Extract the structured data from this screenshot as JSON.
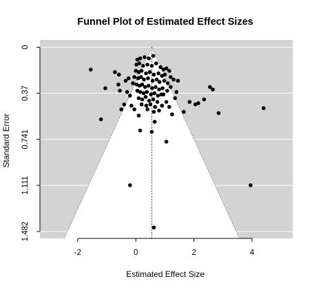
{
  "chart_data": {
    "type": "scatter",
    "title": "Funnel Plot of Estimated Effect Sizes",
    "xlabel": "Estimated Effect Size",
    "ylabel": "Standard Error",
    "xlim": [
      -3.3,
      5.4
    ],
    "ylim": [
      1.482,
      0
    ],
    "y_reversed": true,
    "x_ticks": [
      -2,
      0,
      2,
      4
    ],
    "x_tick_labels": [
      "-2",
      "0",
      "2",
      "4"
    ],
    "y_ticks": [
      0,
      0.37,
      0.741,
      1.111,
      1.482
    ],
    "y_tick_labels": [
      "0",
      "0.37",
      "0.741",
      "1.111",
      "1.482"
    ],
    "grid": true,
    "pooled_estimate": 0.55,
    "funnel_z": 1.96,
    "colors": {
      "panel_background": "#d3d3d3",
      "funnel_fill": "#ffffff",
      "gridline": "#ffffff",
      "point": "#000000",
      "funnel_edge": "#555555"
    },
    "points": [
      {
        "x": -1.55,
        "y": 0.18
      },
      {
        "x": -0.72,
        "y": 0.2
      },
      {
        "x": -0.58,
        "y": 0.22
      },
      {
        "x": -1.05,
        "y": 0.33
      },
      {
        "x": -0.6,
        "y": 0.3
      },
      {
        "x": -0.35,
        "y": 0.27
      },
      {
        "x": -0.25,
        "y": 0.25
      },
      {
        "x": -0.1,
        "y": 0.29
      },
      {
        "x": -0.55,
        "y": 0.35
      },
      {
        "x": -0.3,
        "y": 0.36
      },
      {
        "x": -0.2,
        "y": 0.39
      },
      {
        "x": -0.4,
        "y": 0.46
      },
      {
        "x": -0.5,
        "y": 0.5
      },
      {
        "x": -1.2,
        "y": 0.58
      },
      {
        "x": -0.05,
        "y": 0.5
      },
      {
        "x": -0.15,
        "y": 0.47
      },
      {
        "x": 0.05,
        "y": 0.1
      },
      {
        "x": 0.15,
        "y": 0.09
      },
      {
        "x": 0.3,
        "y": 0.08
      },
      {
        "x": 0.45,
        "y": 0.09
      },
      {
        "x": 0.6,
        "y": 0.07
      },
      {
        "x": 0.02,
        "y": 0.14
      },
      {
        "x": 0.12,
        "y": 0.13
      },
      {
        "x": 0.25,
        "y": 0.15
      },
      {
        "x": 0.4,
        "y": 0.14
      },
      {
        "x": 0.55,
        "y": 0.15
      },
      {
        "x": 0.7,
        "y": 0.13
      },
      {
        "x": 0.85,
        "y": 0.16
      },
      {
        "x": 0.95,
        "y": 0.18
      },
      {
        "x": 1.05,
        "y": 0.17
      },
      {
        "x": 1.15,
        "y": 0.19
      },
      {
        "x": 0.0,
        "y": 0.19
      },
      {
        "x": 0.1,
        "y": 0.2
      },
      {
        "x": 0.2,
        "y": 0.19
      },
      {
        "x": 0.35,
        "y": 0.21
      },
      {
        "x": 0.48,
        "y": 0.2
      },
      {
        "x": 0.62,
        "y": 0.22
      },
      {
        "x": 0.78,
        "y": 0.21
      },
      {
        "x": 0.9,
        "y": 0.23
      },
      {
        "x": 1.0,
        "y": 0.22
      },
      {
        "x": 1.2,
        "y": 0.24
      },
      {
        "x": 1.3,
        "y": 0.26
      },
      {
        "x": 1.45,
        "y": 0.27
      },
      {
        "x": -0.05,
        "y": 0.24
      },
      {
        "x": 0.08,
        "y": 0.25
      },
      {
        "x": 0.18,
        "y": 0.24
      },
      {
        "x": 0.28,
        "y": 0.26
      },
      {
        "x": 0.42,
        "y": 0.25
      },
      {
        "x": 0.58,
        "y": 0.27
      },
      {
        "x": 0.72,
        "y": 0.26
      },
      {
        "x": 0.82,
        "y": 0.28
      },
      {
        "x": 0.98,
        "y": 0.27
      },
      {
        "x": 1.1,
        "y": 0.29
      },
      {
        "x": 0.03,
        "y": 0.3
      },
      {
        "x": 0.13,
        "y": 0.31
      },
      {
        "x": 0.22,
        "y": 0.3
      },
      {
        "x": 0.32,
        "y": 0.32
      },
      {
        "x": 0.44,
        "y": 0.31
      },
      {
        "x": 0.56,
        "y": 0.33
      },
      {
        "x": 0.68,
        "y": 0.32
      },
      {
        "x": 0.8,
        "y": 0.34
      },
      {
        "x": 0.92,
        "y": 0.33
      },
      {
        "x": 1.08,
        "y": 0.35
      },
      {
        "x": 0.05,
        "y": 0.35
      },
      {
        "x": 0.15,
        "y": 0.36
      },
      {
        "x": 0.27,
        "y": 0.37
      },
      {
        "x": 0.38,
        "y": 0.36
      },
      {
        "x": 0.52,
        "y": 0.38
      },
      {
        "x": 0.64,
        "y": 0.37
      },
      {
        "x": 0.76,
        "y": 0.39
      },
      {
        "x": 0.88,
        "y": 0.38
      },
      {
        "x": 0.1,
        "y": 0.41
      },
      {
        "x": 0.22,
        "y": 0.42
      },
      {
        "x": 0.34,
        "y": 0.4
      },
      {
        "x": 0.46,
        "y": 0.43
      },
      {
        "x": 0.6,
        "y": 0.42
      },
      {
        "x": 0.74,
        "y": 0.44
      },
      {
        "x": 0.2,
        "y": 0.46
      },
      {
        "x": 0.36,
        "y": 0.47
      },
      {
        "x": 0.5,
        "y": 0.46
      },
      {
        "x": 0.66,
        "y": 0.48
      },
      {
        "x": 0.9,
        "y": 0.47
      },
      {
        "x": 0.4,
        "y": 0.5
      },
      {
        "x": 0.62,
        "y": 0.52
      },
      {
        "x": 0.8,
        "y": 0.51
      },
      {
        "x": 0.1,
        "y": 0.55
      },
      {
        "x": 0.65,
        "y": 0.6
      },
      {
        "x": 0.15,
        "y": 0.67
      },
      {
        "x": 0.55,
        "y": 0.68
      },
      {
        "x": 1.05,
        "y": 0.76
      },
      {
        "x": 1.25,
        "y": 0.54
      },
      {
        "x": 1.15,
        "y": 0.48
      },
      {
        "x": 1.05,
        "y": 0.44
      },
      {
        "x": 1.35,
        "y": 0.41
      },
      {
        "x": 1.65,
        "y": 0.52
      },
      {
        "x": 1.85,
        "y": 0.44
      },
      {
        "x": 2.05,
        "y": 0.46
      },
      {
        "x": 2.15,
        "y": 0.45
      },
      {
        "x": 2.35,
        "y": 0.42
      },
      {
        "x": 2.55,
        "y": 0.32
      },
      {
        "x": 2.65,
        "y": 0.34
      },
      {
        "x": 2.85,
        "y": 0.53
      },
      {
        "x": 4.4,
        "y": 0.49
      },
      {
        "x": 0.95,
        "y": 0.38
      },
      {
        "x": 1.2,
        "y": 0.32
      },
      {
        "x": 1.4,
        "y": 0.36
      },
      {
        "x": -0.2,
        "y": 1.11
      },
      {
        "x": 0.62,
        "y": 1.45
      },
      {
        "x": 3.95,
        "y": 1.11
      }
    ]
  }
}
